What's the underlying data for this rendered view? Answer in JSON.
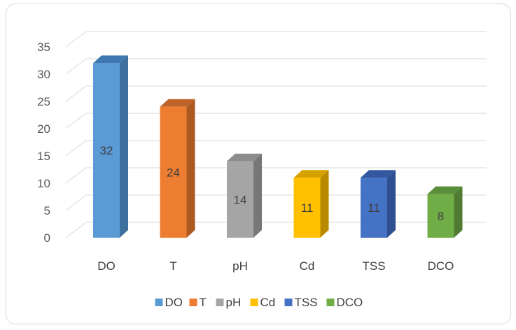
{
  "chart_data": {
    "type": "bar",
    "style": "3d-column",
    "categories": [
      "DO",
      "T",
      "pH",
      "Cd",
      "TSS",
      "DCO"
    ],
    "values": [
      32,
      24,
      14,
      11,
      11,
      8
    ],
    "data_labels": [
      "32",
      "24",
      "14",
      "11",
      "11",
      "8"
    ],
    "colors": [
      "#5B9BD5",
      "#ED7D31",
      "#A5A5A5",
      "#FFC000",
      "#4472C4",
      "#70AD47"
    ],
    "side_colors": [
      "#3F6F9C",
      "#AD5A22",
      "#777777",
      "#B88A00",
      "#2F5090",
      "#4F7C32"
    ],
    "top_colors": [
      "#3F78B0",
      "#C0632A",
      "#8C8C8C",
      "#D6A200",
      "#3458A0",
      "#5A8E3A"
    ],
    "ylim": [
      0,
      35
    ],
    "yticks": [
      "0",
      "5",
      "10",
      "15",
      "20",
      "25",
      "30",
      "35"
    ],
    "grid": true,
    "legend": {
      "position": "bottom",
      "entries": [
        "DO",
        "T",
        "pH",
        "Cd",
        "TSS",
        "DCO"
      ]
    }
  }
}
